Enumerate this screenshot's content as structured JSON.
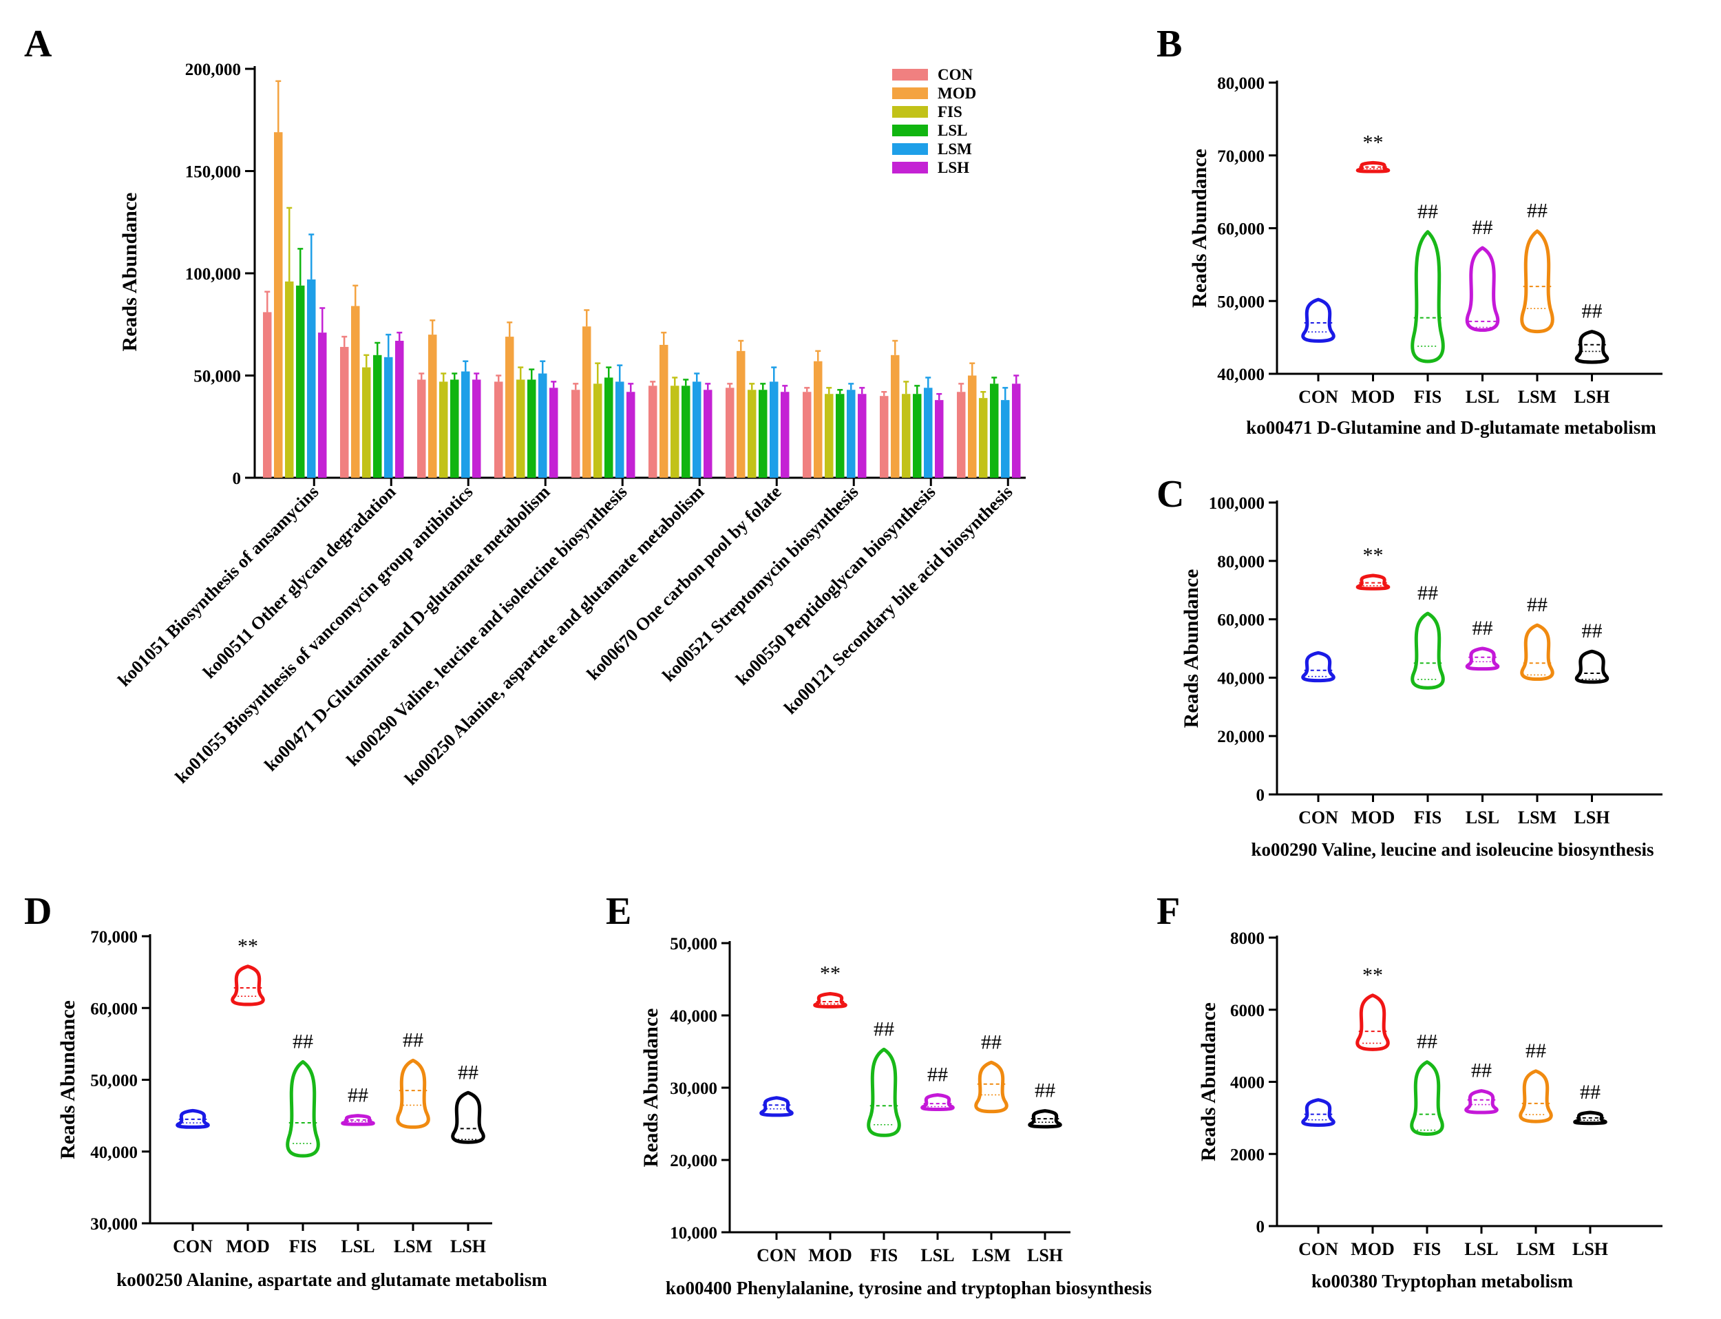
{
  "panelA": {
    "label": "A",
    "ylabel": "Reads Abundance",
    "ylim": [
      0,
      200000
    ],
    "yticks": [
      "0",
      "50,000",
      "100,000",
      "150,000",
      "200,000"
    ],
    "groups": [
      "CON",
      "MOD",
      "FIS",
      "LSL",
      "LSM",
      "LSH"
    ],
    "colors": [
      "#F08080",
      "#F4A340",
      "#C2C218",
      "#10B510",
      "#1E9FE8",
      "#C422D4"
    ],
    "categories": [
      "ko01051 Biosynthesis of ansamycins",
      "ko00511 Other glycan degradation",
      "ko01055 Biosynthesis of vancomycin group antibiotics",
      "ko00471 D-Glutamine and D-glutamate metabolism",
      "ko00290 Valine, leucine and isoleucine biosynthesis",
      "ko00250 Alanine, aspartate and glutamate metabolism",
      "ko00670 One carbon pool by folate",
      "ko00521 Streptomycin biosynthesis",
      "ko00550 Peptidoglycan biosynthesis",
      "ko00121 Secondary bile acid biosynthesis"
    ],
    "values": [
      [
        81000,
        169000,
        96000,
        94000,
        97000,
        71000
      ],
      [
        64000,
        84000,
        54000,
        60000,
        59000,
        67000
      ],
      [
        48000,
        70000,
        47000,
        48000,
        52000,
        48000
      ],
      [
        47000,
        69000,
        48000,
        48000,
        51000,
        44000
      ],
      [
        43000,
        74000,
        46000,
        49000,
        47000,
        42000
      ],
      [
        45000,
        65000,
        45000,
        45000,
        47000,
        43000
      ],
      [
        44000,
        62000,
        43000,
        43000,
        47000,
        42000
      ],
      [
        42000,
        57000,
        41000,
        41000,
        43000,
        41000
      ],
      [
        40000,
        60000,
        41000,
        41000,
        44000,
        38000
      ],
      [
        42000,
        50000,
        39000,
        46000,
        38000,
        46000
      ]
    ],
    "errors": [
      [
        10000,
        25000,
        36000,
        18000,
        22000,
        12000
      ],
      [
        5000,
        10000,
        6000,
        6000,
        11000,
        4000
      ],
      [
        3000,
        7000,
        4000,
        3000,
        5000,
        3000
      ],
      [
        3000,
        7000,
        6000,
        5000,
        6000,
        3000
      ],
      [
        3000,
        8000,
        10000,
        5000,
        8000,
        4000
      ],
      [
        2000,
        6000,
        4000,
        3000,
        4000,
        3000
      ],
      [
        2000,
        5000,
        3000,
        3000,
        7000,
        3000
      ],
      [
        2000,
        5000,
        3000,
        2000,
        3000,
        3000
      ],
      [
        2000,
        7000,
        6000,
        4000,
        5000,
        3000
      ],
      [
        4000,
        6000,
        3000,
        3000,
        6000,
        4000
      ]
    ]
  },
  "violinGroups": [
    "CON",
    "MOD",
    "FIS",
    "LSL",
    "LSM",
    "LSH"
  ],
  "violinColors": [
    "#1A1AE6",
    "#F01515",
    "#18B818",
    "#C418D8",
    "#F08A10",
    "#000000"
  ],
  "violinYLabel": "Reads Abundance",
  "panels": [
    {
      "id": "B",
      "label": "B",
      "title": "ko00471 D-Glutamine and D-glutamate metabolism",
      "ylim": [
        40000,
        80000
      ],
      "yticks": [
        "40,000",
        "50,000",
        "60,000",
        "70,000",
        "80,000"
      ],
      "ranges": [
        [
          44500,
          50200
        ],
        [
          67800,
          69000
        ],
        [
          41700,
          59500
        ],
        [
          46000,
          57300
        ],
        [
          45800,
          59600
        ],
        [
          41600,
          45800
        ]
      ],
      "medians": [
        47000,
        68400,
        47700,
        47200,
        52000,
        44000
      ],
      "sig": [
        "",
        "**",
        "##",
        "##",
        "##",
        "##"
      ]
    },
    {
      "id": "C",
      "label": "C",
      "title": "ko00290 Valine, leucine and isoleucine biosynthesis",
      "ylim": [
        0,
        100000
      ],
      "yticks": [
        "0",
        "20,000",
        "40,000",
        "60,000",
        "80,000",
        "100,000"
      ],
      "ranges": [
        [
          39000,
          48500
        ],
        [
          70500,
          75000
        ],
        [
          36500,
          62000
        ],
        [
          43000,
          50000
        ],
        [
          39500,
          58000
        ],
        [
          38500,
          49000
        ]
      ],
      "medians": [
        42500,
        72500,
        45000,
        47000,
        45000,
        41500
      ],
      "sig": [
        "",
        "**",
        "##",
        "##",
        "##",
        "##"
      ]
    },
    {
      "id": "D",
      "label": "D",
      "title": "ko00250 Alanine, aspartate and glutamate metabolism",
      "ylim": [
        30000,
        70000
      ],
      "yticks": [
        "30,000",
        "40,000",
        "50,000",
        "60,000",
        "70,000"
      ],
      "ranges": [
        [
          43400,
          45700
        ],
        [
          60500,
          65800
        ],
        [
          39400,
          52500
        ],
        [
          43800,
          45000
        ],
        [
          43400,
          52700
        ],
        [
          41300,
          48200
        ]
      ],
      "medians": [
        44500,
        62800,
        44000,
        44400,
        48500,
        43200
      ],
      "sig": [
        "",
        "**",
        "##",
        "##",
        "##",
        "##"
      ]
    },
    {
      "id": "E",
      "label": "E",
      "title": "ko00400 Phenylalanine, tyrosine and tryptophan biosynthesis",
      "ylim": [
        10000,
        50000
      ],
      "yticks": [
        "10,000",
        "20,000",
        "30,000",
        "40,000",
        "50,000"
      ],
      "ranges": [
        [
          26200,
          28600
        ],
        [
          41200,
          43000
        ],
        [
          23400,
          35300
        ],
        [
          27000,
          29000
        ],
        [
          26700,
          33500
        ],
        [
          24600,
          26800
        ]
      ],
      "medians": [
        27600,
        41900,
        27500,
        27800,
        30500,
        25700
      ],
      "sig": [
        "",
        "**",
        "##",
        "##",
        "##",
        "##"
      ]
    },
    {
      "id": "F",
      "label": "F",
      "title": "ko00380 Tryptophan metabolism",
      "ylim": [
        0,
        8000
      ],
      "yticks": [
        "0",
        "2000",
        "4000",
        "6000",
        "8000"
      ],
      "ranges": [
        [
          2800,
          3500
        ],
        [
          4900,
          6400
        ],
        [
          2550,
          4550
        ],
        [
          3150,
          3750
        ],
        [
          2900,
          4300
        ],
        [
          2850,
          3150
        ]
      ],
      "medians": [
        3100,
        5400,
        3100,
        3500,
        3400,
        3000
      ],
      "sig": [
        "",
        "**",
        "##",
        "##",
        "##",
        "##"
      ]
    }
  ]
}
